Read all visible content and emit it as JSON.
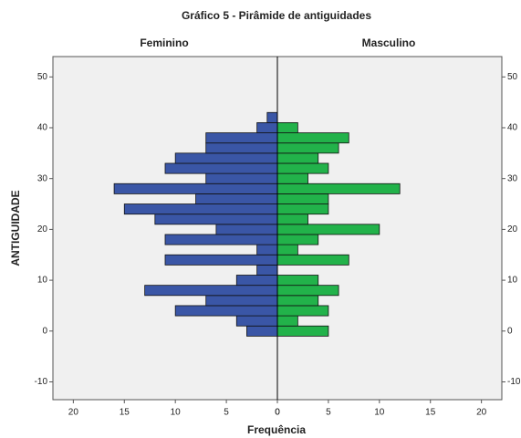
{
  "chart_data": {
    "type": "pyramid",
    "title": "Gráfico 5 - Pirâmide de antiguidades",
    "x_label": "Frequência",
    "y_label": "ANTIGUIDADE",
    "y": [
      0,
      2,
      4,
      6,
      8,
      10,
      12,
      14,
      16,
      18,
      20,
      22,
      24,
      26,
      28,
      30,
      32,
      34,
      36,
      38,
      40,
      42
    ],
    "series": [
      {
        "name": "Feminino",
        "color": "#3a56a6",
        "values": [
          3,
          4,
          10,
          7,
          13,
          4,
          2,
          11,
          2,
          11,
          6,
          12,
          15,
          8,
          16,
          7,
          11,
          10,
          7,
          7,
          2,
          1
        ]
      },
      {
        "name": "Masculino",
        "color": "#22b24a",
        "values": [
          5,
          2,
          5,
          4,
          6,
          4,
          0,
          7,
          2,
          4,
          10,
          3,
          5,
          5,
          12,
          3,
          5,
          4,
          6,
          7,
          2,
          0
        ]
      }
    ],
    "xlim": [
      0,
      22
    ],
    "xticks": [
      0,
      5,
      10,
      15,
      20
    ],
    "ylim": [
      -13.5,
      54
    ],
    "yticks": [
      -10,
      0,
      10,
      20,
      30,
      40,
      50
    ]
  }
}
